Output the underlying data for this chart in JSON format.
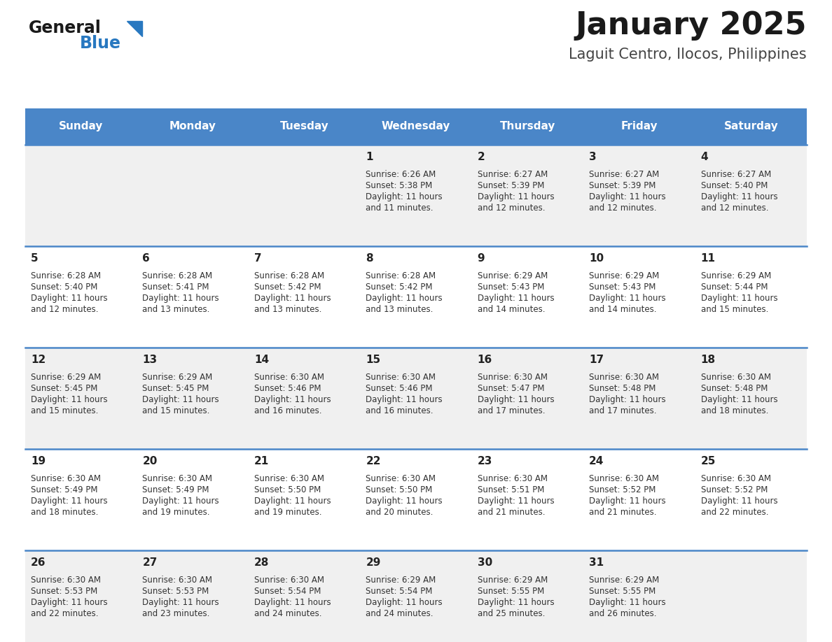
{
  "title": "January 2025",
  "subtitle": "Laguit Centro, Ilocos, Philippines",
  "days_of_week": [
    "Sunday",
    "Monday",
    "Tuesday",
    "Wednesday",
    "Thursday",
    "Friday",
    "Saturday"
  ],
  "header_bg": "#4a86c8",
  "header_text": "#ffffff",
  "row_bg_odd": "#f0f0f0",
  "row_bg_even": "#ffffff",
  "day_number_color": "#222222",
  "text_color": "#333333",
  "line_color": "#4a86c8",
  "title_color": "#1a1a1a",
  "subtitle_color": "#444444",
  "logo_general_color": "#1a1a1a",
  "logo_blue_color": "#2878c0",
  "calendar_data": [
    [
      null,
      null,
      null,
      {
        "day": 1,
        "sunrise": "6:26 AM",
        "sunset": "5:38 PM",
        "daylight_h": "11 hours",
        "daylight_m": "and 11 minutes."
      },
      {
        "day": 2,
        "sunrise": "6:27 AM",
        "sunset": "5:39 PM",
        "daylight_h": "11 hours",
        "daylight_m": "and 12 minutes."
      },
      {
        "day": 3,
        "sunrise": "6:27 AM",
        "sunset": "5:39 PM",
        "daylight_h": "11 hours",
        "daylight_m": "and 12 minutes."
      },
      {
        "day": 4,
        "sunrise": "6:27 AM",
        "sunset": "5:40 PM",
        "daylight_h": "11 hours",
        "daylight_m": "and 12 minutes."
      }
    ],
    [
      {
        "day": 5,
        "sunrise": "6:28 AM",
        "sunset": "5:40 PM",
        "daylight_h": "11 hours",
        "daylight_m": "and 12 minutes."
      },
      {
        "day": 6,
        "sunrise": "6:28 AM",
        "sunset": "5:41 PM",
        "daylight_h": "11 hours",
        "daylight_m": "and 13 minutes."
      },
      {
        "day": 7,
        "sunrise": "6:28 AM",
        "sunset": "5:42 PM",
        "daylight_h": "11 hours",
        "daylight_m": "and 13 minutes."
      },
      {
        "day": 8,
        "sunrise": "6:28 AM",
        "sunset": "5:42 PM",
        "daylight_h": "11 hours",
        "daylight_m": "and 13 minutes."
      },
      {
        "day": 9,
        "sunrise": "6:29 AM",
        "sunset": "5:43 PM",
        "daylight_h": "11 hours",
        "daylight_m": "and 14 minutes."
      },
      {
        "day": 10,
        "sunrise": "6:29 AM",
        "sunset": "5:43 PM",
        "daylight_h": "11 hours",
        "daylight_m": "and 14 minutes."
      },
      {
        "day": 11,
        "sunrise": "6:29 AM",
        "sunset": "5:44 PM",
        "daylight_h": "11 hours",
        "daylight_m": "and 15 minutes."
      }
    ],
    [
      {
        "day": 12,
        "sunrise": "6:29 AM",
        "sunset": "5:45 PM",
        "daylight_h": "11 hours",
        "daylight_m": "and 15 minutes."
      },
      {
        "day": 13,
        "sunrise": "6:29 AM",
        "sunset": "5:45 PM",
        "daylight_h": "11 hours",
        "daylight_m": "and 15 minutes."
      },
      {
        "day": 14,
        "sunrise": "6:30 AM",
        "sunset": "5:46 PM",
        "daylight_h": "11 hours",
        "daylight_m": "and 16 minutes."
      },
      {
        "day": 15,
        "sunrise": "6:30 AM",
        "sunset": "5:46 PM",
        "daylight_h": "11 hours",
        "daylight_m": "and 16 minutes."
      },
      {
        "day": 16,
        "sunrise": "6:30 AM",
        "sunset": "5:47 PM",
        "daylight_h": "11 hours",
        "daylight_m": "and 17 minutes."
      },
      {
        "day": 17,
        "sunrise": "6:30 AM",
        "sunset": "5:48 PM",
        "daylight_h": "11 hours",
        "daylight_m": "and 17 minutes."
      },
      {
        "day": 18,
        "sunrise": "6:30 AM",
        "sunset": "5:48 PM",
        "daylight_h": "11 hours",
        "daylight_m": "and 18 minutes."
      }
    ],
    [
      {
        "day": 19,
        "sunrise": "6:30 AM",
        "sunset": "5:49 PM",
        "daylight_h": "11 hours",
        "daylight_m": "and 18 minutes."
      },
      {
        "day": 20,
        "sunrise": "6:30 AM",
        "sunset": "5:49 PM",
        "daylight_h": "11 hours",
        "daylight_m": "and 19 minutes."
      },
      {
        "day": 21,
        "sunrise": "6:30 AM",
        "sunset": "5:50 PM",
        "daylight_h": "11 hours",
        "daylight_m": "and 19 minutes."
      },
      {
        "day": 22,
        "sunrise": "6:30 AM",
        "sunset": "5:50 PM",
        "daylight_h": "11 hours",
        "daylight_m": "and 20 minutes."
      },
      {
        "day": 23,
        "sunrise": "6:30 AM",
        "sunset": "5:51 PM",
        "daylight_h": "11 hours",
        "daylight_m": "and 21 minutes."
      },
      {
        "day": 24,
        "sunrise": "6:30 AM",
        "sunset": "5:52 PM",
        "daylight_h": "11 hours",
        "daylight_m": "and 21 minutes."
      },
      {
        "day": 25,
        "sunrise": "6:30 AM",
        "sunset": "5:52 PM",
        "daylight_h": "11 hours",
        "daylight_m": "and 22 minutes."
      }
    ],
    [
      {
        "day": 26,
        "sunrise": "6:30 AM",
        "sunset": "5:53 PM",
        "daylight_h": "11 hours",
        "daylight_m": "and 22 minutes."
      },
      {
        "day": 27,
        "sunrise": "6:30 AM",
        "sunset": "5:53 PM",
        "daylight_h": "11 hours",
        "daylight_m": "and 23 minutes."
      },
      {
        "day": 28,
        "sunrise": "6:30 AM",
        "sunset": "5:54 PM",
        "daylight_h": "11 hours",
        "daylight_m": "and 24 minutes."
      },
      {
        "day": 29,
        "sunrise": "6:29 AM",
        "sunset": "5:54 PM",
        "daylight_h": "11 hours",
        "daylight_m": "and 24 minutes."
      },
      {
        "day": 30,
        "sunrise": "6:29 AM",
        "sunset": "5:55 PM",
        "daylight_h": "11 hours",
        "daylight_m": "and 25 minutes."
      },
      {
        "day": 31,
        "sunrise": "6:29 AM",
        "sunset": "5:55 PM",
        "daylight_h": "11 hours",
        "daylight_m": "and 26 minutes."
      },
      null
    ]
  ],
  "figsize": [
    11.88,
    9.18
  ],
  "dpi": 100,
  "title_fontsize": 32,
  "subtitle_fontsize": 15,
  "header_fontsize": 11,
  "day_num_fontsize": 11,
  "cell_text_fontsize": 8.5
}
